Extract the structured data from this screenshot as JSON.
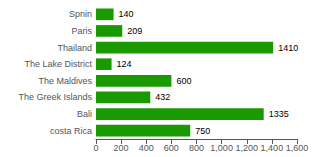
{
  "chart_data": {
    "type": "bar",
    "orientation": "horizontal",
    "categories": [
      "Spnin",
      "Paris",
      "Thailand",
      "The Lake District",
      "The Maldives",
      "The Greek Islands",
      "Bali",
      "costa Rica"
    ],
    "values": [
      140,
      209,
      1410,
      124,
      600,
      432,
      1335,
      750
    ],
    "color": "#1a9a00",
    "xlim": [
      0,
      1600
    ],
    "xticks": [
      0,
      200,
      400,
      600,
      800,
      1000,
      1200,
      1400,
      1600
    ],
    "data_labels": true,
    "grid": false
  }
}
